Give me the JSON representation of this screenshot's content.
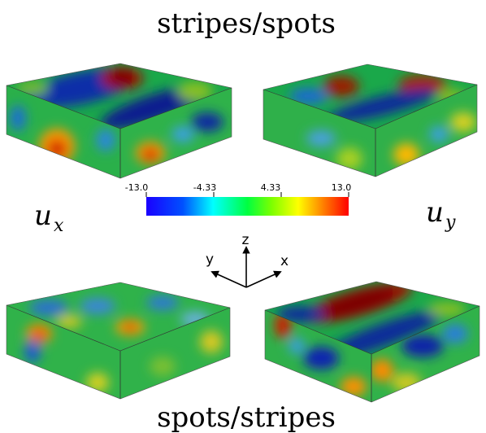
{
  "titles": {
    "top": "stripes/spots",
    "bottom": "spots/stripes"
  },
  "field_labels": {
    "left": {
      "base": "u",
      "sub": "x"
    },
    "right": {
      "base": "u",
      "sub": "y"
    }
  },
  "colorbar": {
    "ticks": [
      "-13.0",
      "-4.33",
      "4.33",
      "13.0"
    ],
    "min": -13.0,
    "max": 13.0,
    "colors": [
      "#0000ff",
      "#00ffff",
      "#00ff00",
      "#ffff00",
      "#ff0000"
    ]
  },
  "axes": {
    "z": "z",
    "y": "y",
    "x": "x"
  },
  "colors": {
    "low": "#0033cc",
    "mid": "#2db84a",
    "high": "#a80000"
  }
}
